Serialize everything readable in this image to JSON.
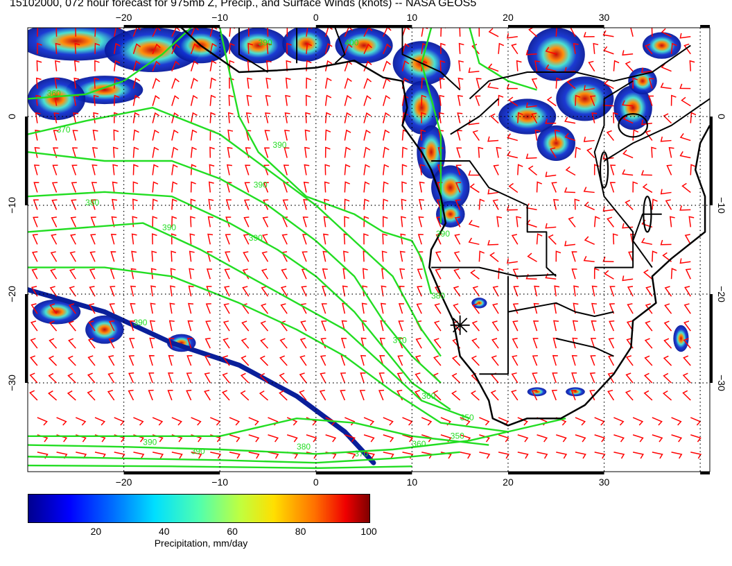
{
  "title": "15102000, 072 hour forecast for 975mb Z, Precip., and Surface Winds (knots) -- NASA GEOS5",
  "map": {
    "lon_range": [
      -30,
      41
    ],
    "lat_range": [
      -40,
      10
    ],
    "top_lon_ticks": [
      "−20",
      "−10",
      "0",
      "10",
      "20",
      "30"
    ],
    "bottom_lon_ticks": [
      "−20",
      "−10",
      "0",
      "10",
      "20",
      "30"
    ],
    "left_lat_ticks": [
      "0",
      "−10",
      "−20",
      "−30"
    ],
    "right_lat_ticks": [
      "0",
      "−10",
      "−20",
      "−30"
    ],
    "contour_labels": [
      "360",
      "370",
      "380",
      "390",
      "390",
      "390",
      "390",
      "390",
      "380",
      "370",
      "360",
      "350",
      "350",
      "360",
      "370",
      "380",
      "390",
      "390",
      "390",
      "390",
      "400"
    ],
    "colors": {
      "wind_barbs": "#ff0000",
      "height_contours": "#22dd22",
      "coastlines": "#000000",
      "gridlines": "#000000"
    }
  },
  "colorbar": {
    "title": "Precipitation, mm/day",
    "ticks": [
      "20",
      "40",
      "60",
      "80",
      "100"
    ],
    "min": 0,
    "max": 100
  }
}
